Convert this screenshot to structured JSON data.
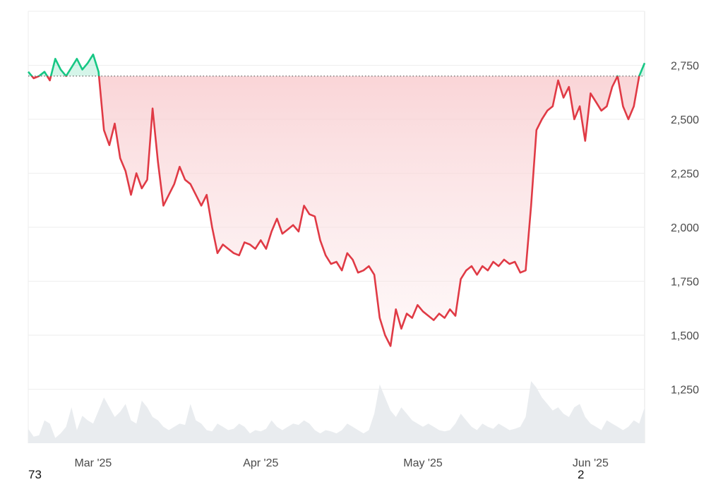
{
  "chart_data": {
    "type": "area",
    "title": "",
    "xlabel": "",
    "ylabel": "",
    "x_start": "2025-02-17",
    "x_end": "2025-06-11",
    "ylim": [
      1000,
      3000
    ],
    "y_ticks": [
      1250,
      1500,
      1750,
      2000,
      2250,
      2500,
      2750
    ],
    "y_tick_labels": [
      "1,250",
      "1,500",
      "1,750",
      "2,000",
      "2,250",
      "2,500",
      "2,750"
    ],
    "x_ticks": [
      {
        "date": "2025-03-01",
        "label": "Mar '25"
      },
      {
        "date": "2025-04-01",
        "label": "Apr '25"
      },
      {
        "date": "2025-05-01",
        "label": "May '25"
      },
      {
        "date": "2025-06-01",
        "label": "Jun '25"
      }
    ],
    "baseline": 2700,
    "grid": true,
    "colors": {
      "above_baseline": "#16c784",
      "below_baseline": "#e03a45",
      "fill_below": "#f8c9cc",
      "volume": "#e9ecef",
      "grid": "#eeeeee",
      "baseline": "#555555"
    },
    "series": [
      {
        "values": [
          [
            "2025-02-17",
            2720
          ],
          [
            "2025-02-18",
            2690
          ],
          [
            "2025-02-19",
            2700
          ],
          [
            "2025-02-20",
            2720
          ],
          [
            "2025-02-21",
            2680
          ],
          [
            "2025-02-22",
            2780
          ],
          [
            "2025-02-23",
            2730
          ],
          [
            "2025-02-24",
            2700
          ],
          [
            "2025-02-25",
            2740
          ],
          [
            "2025-02-26",
            2780
          ],
          [
            "2025-02-27",
            2730
          ],
          [
            "2025-02-28",
            2760
          ],
          [
            "2025-03-01",
            2800
          ],
          [
            "2025-03-02",
            2720
          ],
          [
            "2025-03-03",
            2450
          ],
          [
            "2025-03-04",
            2380
          ],
          [
            "2025-03-05",
            2480
          ],
          [
            "2025-03-06",
            2320
          ],
          [
            "2025-03-07",
            2260
          ],
          [
            "2025-03-08",
            2150
          ],
          [
            "2025-03-09",
            2250
          ],
          [
            "2025-03-10",
            2180
          ],
          [
            "2025-03-11",
            2220
          ],
          [
            "2025-03-12",
            2550
          ],
          [
            "2025-03-13",
            2300
          ],
          [
            "2025-03-14",
            2100
          ],
          [
            "2025-03-15",
            2150
          ],
          [
            "2025-03-16",
            2200
          ],
          [
            "2025-03-17",
            2280
          ],
          [
            "2025-03-18",
            2220
          ],
          [
            "2025-03-19",
            2200
          ],
          [
            "2025-03-20",
            2150
          ],
          [
            "2025-03-21",
            2100
          ],
          [
            "2025-03-22",
            2150
          ],
          [
            "2025-03-23",
            2000
          ],
          [
            "2025-03-24",
            1880
          ],
          [
            "2025-03-25",
            1920
          ],
          [
            "2025-03-26",
            1900
          ],
          [
            "2025-03-27",
            1880
          ],
          [
            "2025-03-28",
            1870
          ],
          [
            "2025-03-29",
            1930
          ],
          [
            "2025-03-30",
            1920
          ],
          [
            "2025-03-31",
            1900
          ],
          [
            "2025-04-01",
            1940
          ],
          [
            "2025-04-02",
            1900
          ],
          [
            "2025-04-03",
            1980
          ],
          [
            "2025-04-04",
            2040
          ],
          [
            "2025-04-05",
            1970
          ],
          [
            "2025-04-06",
            1990
          ],
          [
            "2025-04-07",
            2010
          ],
          [
            "2025-04-08",
            1980
          ],
          [
            "2025-04-09",
            2100
          ],
          [
            "2025-04-10",
            2060
          ],
          [
            "2025-04-11",
            2050
          ],
          [
            "2025-04-12",
            1940
          ],
          [
            "2025-04-13",
            1870
          ],
          [
            "2025-04-14",
            1830
          ],
          [
            "2025-04-15",
            1840
          ],
          [
            "2025-04-16",
            1800
          ],
          [
            "2025-04-17",
            1880
          ],
          [
            "2025-04-18",
            1850
          ],
          [
            "2025-04-19",
            1790
          ],
          [
            "2025-04-20",
            1800
          ],
          [
            "2025-04-21",
            1820
          ],
          [
            "2025-04-22",
            1780
          ],
          [
            "2025-04-23",
            1580
          ],
          [
            "2025-04-24",
            1500
          ],
          [
            "2025-04-25",
            1450
          ],
          [
            "2025-04-26",
            1620
          ],
          [
            "2025-04-27",
            1530
          ],
          [
            "2025-04-28",
            1600
          ],
          [
            "2025-04-29",
            1580
          ],
          [
            "2025-04-30",
            1640
          ],
          [
            "2025-05-01",
            1610
          ],
          [
            "2025-05-02",
            1590
          ],
          [
            "2025-05-03",
            1570
          ],
          [
            "2025-05-04",
            1600
          ],
          [
            "2025-05-05",
            1580
          ],
          [
            "2025-05-06",
            1620
          ],
          [
            "2025-05-07",
            1590
          ],
          [
            "2025-05-08",
            1760
          ],
          [
            "2025-05-09",
            1800
          ],
          [
            "2025-05-10",
            1820
          ],
          [
            "2025-05-11",
            1780
          ],
          [
            "2025-05-12",
            1820
          ],
          [
            "2025-05-13",
            1800
          ],
          [
            "2025-05-14",
            1840
          ],
          [
            "2025-05-15",
            1820
          ],
          [
            "2025-05-16",
            1850
          ],
          [
            "2025-05-17",
            1830
          ],
          [
            "2025-05-18",
            1840
          ],
          [
            "2025-05-19",
            1790
          ],
          [
            "2025-05-20",
            1800
          ],
          [
            "2025-05-21",
            2100
          ],
          [
            "2025-05-22",
            2450
          ],
          [
            "2025-05-23",
            2500
          ],
          [
            "2025-05-24",
            2540
          ],
          [
            "2025-05-25",
            2560
          ],
          [
            "2025-05-26",
            2680
          ],
          [
            "2025-05-27",
            2600
          ],
          [
            "2025-05-28",
            2650
          ],
          [
            "2025-05-29",
            2500
          ],
          [
            "2025-05-30",
            2560
          ],
          [
            "2025-05-31",
            2400
          ],
          [
            "2025-06-01",
            2620
          ],
          [
            "2025-06-02",
            2580
          ],
          [
            "2025-06-03",
            2540
          ],
          [
            "2025-06-04",
            2560
          ],
          [
            "2025-06-05",
            2650
          ],
          [
            "2025-06-06",
            2700
          ],
          [
            "2025-06-07",
            2560
          ],
          [
            "2025-06-08",
            2500
          ],
          [
            "2025-06-09",
            2560
          ],
          [
            "2025-06-10",
            2700
          ],
          [
            "2025-06-11",
            2760
          ]
        ]
      }
    ],
    "volume": [
      [
        "2025-02-17",
        0.22
      ],
      [
        "2025-02-18",
        0.1
      ],
      [
        "2025-02-19",
        0.12
      ],
      [
        "2025-02-20",
        0.35
      ],
      [
        "2025-02-21",
        0.3
      ],
      [
        "2025-02-22",
        0.08
      ],
      [
        "2025-02-23",
        0.15
      ],
      [
        "2025-02-24",
        0.25
      ],
      [
        "2025-02-25",
        0.55
      ],
      [
        "2025-02-26",
        0.2
      ],
      [
        "2025-02-27",
        0.42
      ],
      [
        "2025-02-28",
        0.35
      ],
      [
        "2025-03-01",
        0.3
      ],
      [
        "2025-03-02",
        0.5
      ],
      [
        "2025-03-03",
        0.7
      ],
      [
        "2025-03-04",
        0.55
      ],
      [
        "2025-03-05",
        0.4
      ],
      [
        "2025-03-06",
        0.48
      ],
      [
        "2025-03-07",
        0.6
      ],
      [
        "2025-03-08",
        0.35
      ],
      [
        "2025-03-09",
        0.3
      ],
      [
        "2025-03-10",
        0.65
      ],
      [
        "2025-03-11",
        0.55
      ],
      [
        "2025-03-12",
        0.4
      ],
      [
        "2025-03-13",
        0.35
      ],
      [
        "2025-03-14",
        0.25
      ],
      [
        "2025-03-15",
        0.2
      ],
      [
        "2025-03-16",
        0.25
      ],
      [
        "2025-03-17",
        0.3
      ],
      [
        "2025-03-18",
        0.28
      ],
      [
        "2025-03-19",
        0.6
      ],
      [
        "2025-03-20",
        0.35
      ],
      [
        "2025-03-21",
        0.3
      ],
      [
        "2025-03-22",
        0.2
      ],
      [
        "2025-03-23",
        0.18
      ],
      [
        "2025-03-24",
        0.3
      ],
      [
        "2025-03-25",
        0.25
      ],
      [
        "2025-03-26",
        0.2
      ],
      [
        "2025-03-27",
        0.22
      ],
      [
        "2025-03-28",
        0.3
      ],
      [
        "2025-03-29",
        0.25
      ],
      [
        "2025-03-30",
        0.15
      ],
      [
        "2025-03-31",
        0.2
      ],
      [
        "2025-04-01",
        0.18
      ],
      [
        "2025-04-02",
        0.22
      ],
      [
        "2025-04-03",
        0.35
      ],
      [
        "2025-04-04",
        0.25
      ],
      [
        "2025-04-05",
        0.2
      ],
      [
        "2025-04-06",
        0.25
      ],
      [
        "2025-04-07",
        0.3
      ],
      [
        "2025-04-08",
        0.28
      ],
      [
        "2025-04-09",
        0.35
      ],
      [
        "2025-04-10",
        0.3
      ],
      [
        "2025-04-11",
        0.2
      ],
      [
        "2025-04-12",
        0.15
      ],
      [
        "2025-04-13",
        0.2
      ],
      [
        "2025-04-14",
        0.18
      ],
      [
        "2025-04-15",
        0.15
      ],
      [
        "2025-04-16",
        0.2
      ],
      [
        "2025-04-17",
        0.3
      ],
      [
        "2025-04-18",
        0.25
      ],
      [
        "2025-04-19",
        0.2
      ],
      [
        "2025-04-20",
        0.15
      ],
      [
        "2025-04-21",
        0.2
      ],
      [
        "2025-04-22",
        0.45
      ],
      [
        "2025-04-23",
        0.9
      ],
      [
        "2025-04-24",
        0.7
      ],
      [
        "2025-04-25",
        0.5
      ],
      [
        "2025-04-26",
        0.4
      ],
      [
        "2025-04-27",
        0.55
      ],
      [
        "2025-04-28",
        0.45
      ],
      [
        "2025-04-29",
        0.35
      ],
      [
        "2025-04-30",
        0.3
      ],
      [
        "2025-05-01",
        0.25
      ],
      [
        "2025-05-02",
        0.3
      ],
      [
        "2025-05-03",
        0.25
      ],
      [
        "2025-05-04",
        0.2
      ],
      [
        "2025-05-05",
        0.18
      ],
      [
        "2025-05-06",
        0.2
      ],
      [
        "2025-05-07",
        0.3
      ],
      [
        "2025-05-08",
        0.45
      ],
      [
        "2025-05-09",
        0.35
      ],
      [
        "2025-05-10",
        0.25
      ],
      [
        "2025-05-11",
        0.2
      ],
      [
        "2025-05-12",
        0.3
      ],
      [
        "2025-05-13",
        0.25
      ],
      [
        "2025-05-14",
        0.22
      ],
      [
        "2025-05-15",
        0.3
      ],
      [
        "2025-05-16",
        0.25
      ],
      [
        "2025-05-17",
        0.2
      ],
      [
        "2025-05-18",
        0.22
      ],
      [
        "2025-05-19",
        0.25
      ],
      [
        "2025-05-20",
        0.4
      ],
      [
        "2025-05-21",
        0.95
      ],
      [
        "2025-05-22",
        0.85
      ],
      [
        "2025-05-23",
        0.7
      ],
      [
        "2025-05-24",
        0.6
      ],
      [
        "2025-05-25",
        0.5
      ],
      [
        "2025-05-26",
        0.55
      ],
      [
        "2025-05-27",
        0.45
      ],
      [
        "2025-05-28",
        0.4
      ],
      [
        "2025-05-29",
        0.55
      ],
      [
        "2025-05-30",
        0.6
      ],
      [
        "2025-05-31",
        0.4
      ],
      [
        "2025-06-01",
        0.3
      ],
      [
        "2025-06-02",
        0.25
      ],
      [
        "2025-06-03",
        0.2
      ],
      [
        "2025-06-04",
        0.35
      ],
      [
        "2025-06-05",
        0.3
      ],
      [
        "2025-06-06",
        0.25
      ],
      [
        "2025-06-07",
        0.2
      ],
      [
        "2025-06-08",
        0.25
      ],
      [
        "2025-06-09",
        0.35
      ],
      [
        "2025-06-10",
        0.3
      ],
      [
        "2025-06-11",
        0.55
      ]
    ]
  },
  "footer": {
    "left_label": "73",
    "right_label": "2"
  }
}
